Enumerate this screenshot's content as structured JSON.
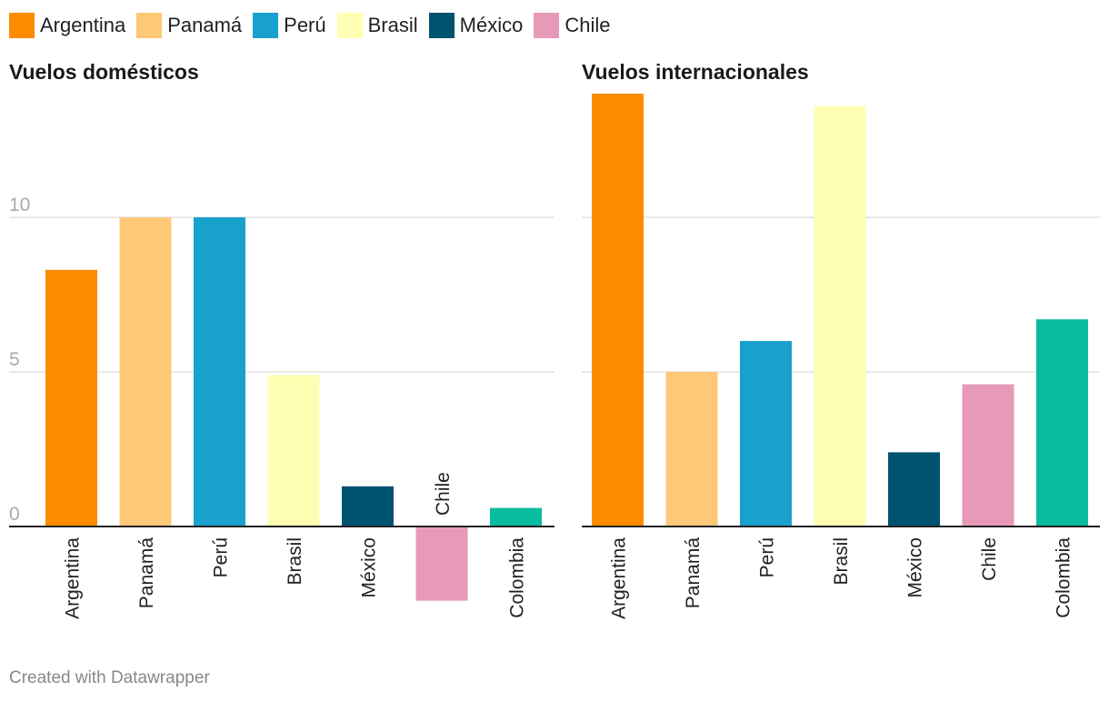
{
  "legend": [
    {
      "label": "Argentina",
      "color": "#fb8c00"
    },
    {
      "label": "Panamá",
      "color": "#fec877"
    },
    {
      "label": "Perú",
      "color": "#18a1cd"
    },
    {
      "label": "Brasil",
      "color": "#ffffb3"
    },
    {
      "label": "México",
      "color": "#005271"
    },
    {
      "label": "Chile",
      "color": "#e79ab8"
    }
  ],
  "colors": {
    "Colombia": "#09bb9f"
  },
  "credit": "Created with Datawrapper",
  "chart_data": [
    {
      "type": "bar",
      "title": "Vuelos domésticos",
      "categories": [
        "Argentina",
        "Panamá",
        "Perú",
        "Brasil",
        "México",
        "Chile",
        "Colombia"
      ],
      "values": [
        8.3,
        10.0,
        10.0,
        4.9,
        1.3,
        -2.4,
        0.6
      ],
      "yticks": [
        0,
        5,
        10
      ],
      "ylim": [
        -3.2,
        14.0
      ],
      "grid": true
    },
    {
      "type": "bar",
      "title": "Vuelos internacionales",
      "categories": [
        "Argentina",
        "Panamá",
        "Perú",
        "Brasil",
        "México",
        "Chile",
        "Colombia"
      ],
      "values": [
        14.0,
        5.0,
        6.0,
        13.6,
        2.4,
        4.6,
        6.7
      ],
      "yticks": [
        0,
        5,
        10
      ],
      "ylim": [
        -3.2,
        14.0
      ],
      "grid": true
    }
  ]
}
